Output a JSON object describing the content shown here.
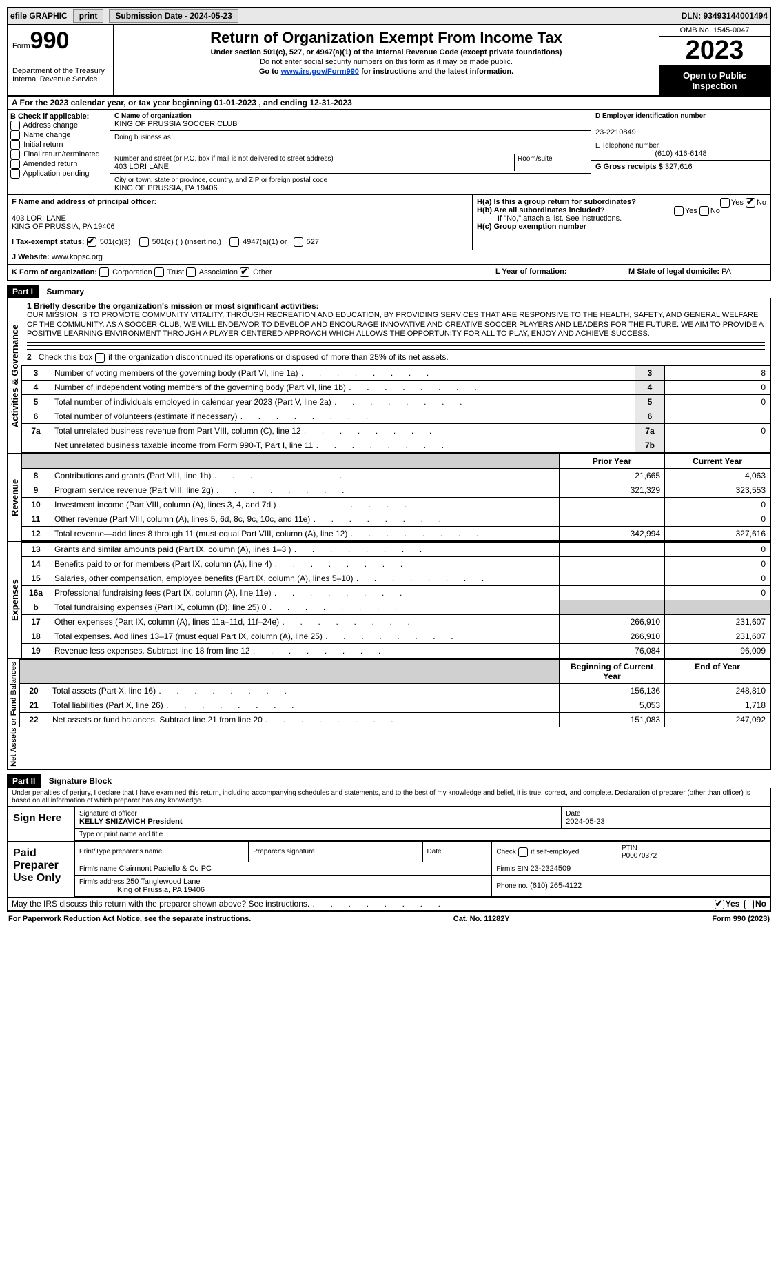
{
  "topbar": {
    "efile_label": "efile GRAPHIC",
    "print_btn": "print",
    "submission_label": "Submission Date - 2024-05-23",
    "dln_label": "DLN: 93493144001494"
  },
  "header": {
    "form_label": "Form",
    "form_number": "990",
    "dept": "Department of the Treasury",
    "irs": "Internal Revenue Service",
    "title": "Return of Organization Exempt From Income Tax",
    "subtitle": "Under section 501(c), 527, or 4947(a)(1) of the Internal Revenue Code (except private foundations)",
    "note1": "Do not enter social security numbers on this form as it may be made public.",
    "note2_pre": "Go to ",
    "note2_link": "www.irs.gov/Form990",
    "note2_post": " for instructions and the latest information.",
    "omb": "OMB No. 1545-0047",
    "year": "2023",
    "open": "Open to Public Inspection"
  },
  "period": {
    "line": "A For the 2023 calendar year, or tax year beginning 01-01-2023    , and ending 12-31-2023"
  },
  "boxB": {
    "title": "B Check if applicable:",
    "opts": [
      "Address change",
      "Name change",
      "Initial return",
      "Final return/terminated",
      "Amended return",
      "Application pending"
    ]
  },
  "boxC": {
    "name_label": "C Name of organization",
    "name": "KING OF PRUSSIA SOCCER CLUB",
    "dba_label": "Doing business as",
    "dba": "",
    "street_label": "Number and street (or P.O. box if mail is not delivered to street address)",
    "room_label": "Room/suite",
    "street": "403 LORI LANE",
    "city_label": "City or town, state or province, country, and ZIP or foreign postal code",
    "city": "KING OF PRUSSIA, PA   19406"
  },
  "boxD": {
    "label": "D Employer identification number",
    "val": "23-2210849"
  },
  "boxE": {
    "label": "E Telephone number",
    "val": "(610) 416-6148"
  },
  "boxG": {
    "label": "G Gross receipts $",
    "val": "327,616"
  },
  "boxF": {
    "label": "F  Name and address of principal officer:",
    "line1": "403 LORI LANE",
    "line2": "KING OF PRUSSIA, PA   19406"
  },
  "boxH": {
    "ha": "H(a)  Is this a group return for subordinates?",
    "hb": "H(b)  Are all subordinates included?",
    "hnote": "If \"No,\" attach a list. See instructions.",
    "hc": "H(c)  Group exemption number ",
    "yes": "Yes",
    "no": "No"
  },
  "boxI": {
    "label": "I    Tax-exempt status:",
    "o1": "501(c)(3)",
    "o2": "501(c) (  ) (insert no.)",
    "o3": "4947(a)(1) or",
    "o4": "527"
  },
  "boxJ": {
    "label": "J    Website: ",
    "val": "www.kopsc.org"
  },
  "boxK": {
    "label": "K Form of organization:",
    "o1": "Corporation",
    "o2": "Trust",
    "o3": "Association",
    "o4": "Other"
  },
  "boxL": {
    "label": "L Year of formation:",
    "val": ""
  },
  "boxM": {
    "label": "M State of legal domicile: ",
    "val": "PA"
  },
  "part1": {
    "hdr": "Part I",
    "title": "Summary",
    "l1_label": "1  Briefly describe the organization's mission or most significant activities:",
    "mission": "OUR MISSION IS TO PROMOTE COMMUNITY VITALITY, THROUGH RECREATION AND EDUCATION, BY PROVIDING SERVICES THAT ARE RESPONSIVE TO THE HEALTH, SAFETY, AND GENERAL WELFARE OF THE COMMUNITY. AS A SOCCER CLUB, WE WILL ENDEAVOR TO DEVELOP AND ENCOURAGE INNOVATIVE AND CREATIVE SOCCER PLAYERS AND LEADERS FOR THE FUTURE. WE AIM TO PROVIDE A POSITIVE LEARNING ENVIRONMENT THROUGH A PLAYER CENTERED APPROACH WHICH ALLOWS THE OPPORTUNITY FOR ALL TO PLAY, ENJOY AND ACHIEVE SUCCESS.",
    "l2": "2   Check this box       if the organization discontinued its operations or disposed of more than 25% of its net assets.",
    "vbar1": "Activities & Governance",
    "rows_ag": [
      {
        "n": "3",
        "d": "Number of voting members of the governing body (Part VI, line 1a)",
        "bn": "3",
        "v": "8"
      },
      {
        "n": "4",
        "d": "Number of independent voting members of the governing body (Part VI, line 1b)",
        "bn": "4",
        "v": "0"
      },
      {
        "n": "5",
        "d": "Total number of individuals employed in calendar year 2023 (Part V, line 2a)",
        "bn": "5",
        "v": "0"
      },
      {
        "n": "6",
        "d": "Total number of volunteers (estimate if necessary)",
        "bn": "6",
        "v": ""
      },
      {
        "n": "7a",
        "d": "Total unrelated business revenue from Part VIII, column (C), line 12",
        "bn": "7a",
        "v": "0"
      },
      {
        "n": "",
        "d": "Net unrelated business taxable income from Form 990-T, Part I, line 11",
        "bn": "7b",
        "v": ""
      }
    ],
    "vbar2": "Revenue",
    "col_prior": "Prior Year",
    "col_current": "Current Year",
    "rows_rev": [
      {
        "n": "8",
        "d": "Contributions and grants (Part VIII, line 1h)",
        "p": "21,665",
        "c": "4,063"
      },
      {
        "n": "9",
        "d": "Program service revenue (Part VIII, line 2g)",
        "p": "321,329",
        "c": "323,553"
      },
      {
        "n": "10",
        "d": "Investment income (Part VIII, column (A), lines 3, 4, and 7d )",
        "p": "",
        "c": "0"
      },
      {
        "n": "11",
        "d": "Other revenue (Part VIII, column (A), lines 5, 6d, 8c, 9c, 10c, and 11e)",
        "p": "",
        "c": "0"
      },
      {
        "n": "12",
        "d": "Total revenue—add lines 8 through 11 (must equal Part VIII, column (A), line 12)",
        "p": "342,994",
        "c": "327,616"
      }
    ],
    "vbar3": "Expenses",
    "rows_exp": [
      {
        "n": "13",
        "d": "Grants and similar amounts paid (Part IX, column (A), lines 1–3 )",
        "p": "",
        "c": "0"
      },
      {
        "n": "14",
        "d": "Benefits paid to or for members (Part IX, column (A), line 4)",
        "p": "",
        "c": "0"
      },
      {
        "n": "15",
        "d": "Salaries, other compensation, employee benefits (Part IX, column (A), lines 5–10)",
        "p": "",
        "c": "0"
      },
      {
        "n": "16a",
        "d": "Professional fundraising fees (Part IX, column (A), line 11e)",
        "p": "",
        "c": "0"
      },
      {
        "n": "b",
        "d": "Total fundraising expenses (Part IX, column (D), line 25) 0",
        "p": "shade",
        "c": "shade"
      },
      {
        "n": "17",
        "d": "Other expenses (Part IX, column (A), lines 11a–11d, 11f–24e)",
        "p": "266,910",
        "c": "231,607"
      },
      {
        "n": "18",
        "d": "Total expenses. Add lines 13–17 (must equal Part IX, column (A), line 25)",
        "p": "266,910",
        "c": "231,607"
      },
      {
        "n": "19",
        "d": "Revenue less expenses. Subtract line 18 from line 12",
        "p": "76,084",
        "c": "96,009"
      }
    ],
    "vbar4": "Net Assets or Fund Balances",
    "col_begin": "Beginning of Current Year",
    "col_end": "End of Year",
    "rows_na": [
      {
        "n": "20",
        "d": "Total assets (Part X, line 16)",
        "p": "156,136",
        "c": "248,810"
      },
      {
        "n": "21",
        "d": "Total liabilities (Part X, line 26)",
        "p": "5,053",
        "c": "1,718"
      },
      {
        "n": "22",
        "d": "Net assets or fund balances. Subtract line 21 from line 20",
        "p": "151,083",
        "c": "247,092"
      }
    ]
  },
  "part2": {
    "hdr": "Part II",
    "title": "Signature Block",
    "decl": "Under penalties of perjury, I declare that I have examined this return, including accompanying schedules and statements, and to the best of my knowledge and belief, it is true, correct, and complete. Declaration of preparer (other than officer) is based on all information of which preparer has any knowledge.",
    "sign_here": "Sign Here",
    "sig_officer_label": "Signature of officer",
    "sig_date_label": "Date",
    "sig_date": "2024-05-23",
    "officer_name": "KELLY SNIZAVICH  President",
    "type_label": "Type or print name and title",
    "paid": "Paid Preparer Use Only",
    "p_name_label": "Print/Type preparer's name",
    "p_sig_label": "Preparer's signature",
    "p_date_label": "Date",
    "p_check_label": "Check        if self-employed",
    "ptin_label": "PTIN",
    "ptin": "P00070372",
    "firm_name_label": "Firm's name   ",
    "firm_name": "Clairmont Paciello & Co PC",
    "firm_ein_label": "Firm's EIN  ",
    "firm_ein": "23-2324509",
    "firm_addr_label": "Firm's address ",
    "firm_addr1": "250 Tanglewood Lane",
    "firm_addr2": "King of Prussia, PA   19406",
    "phone_label": "Phone no.",
    "phone": "(610) 265-4122",
    "discuss": "May the IRS discuss this return with the preparer shown above? See instructions.",
    "yes": "Yes",
    "no": "No"
  },
  "footer": {
    "left": "For Paperwork Reduction Act Notice, see the separate instructions.",
    "mid": "Cat. No. 11282Y",
    "right": "Form 990 (2023)"
  }
}
